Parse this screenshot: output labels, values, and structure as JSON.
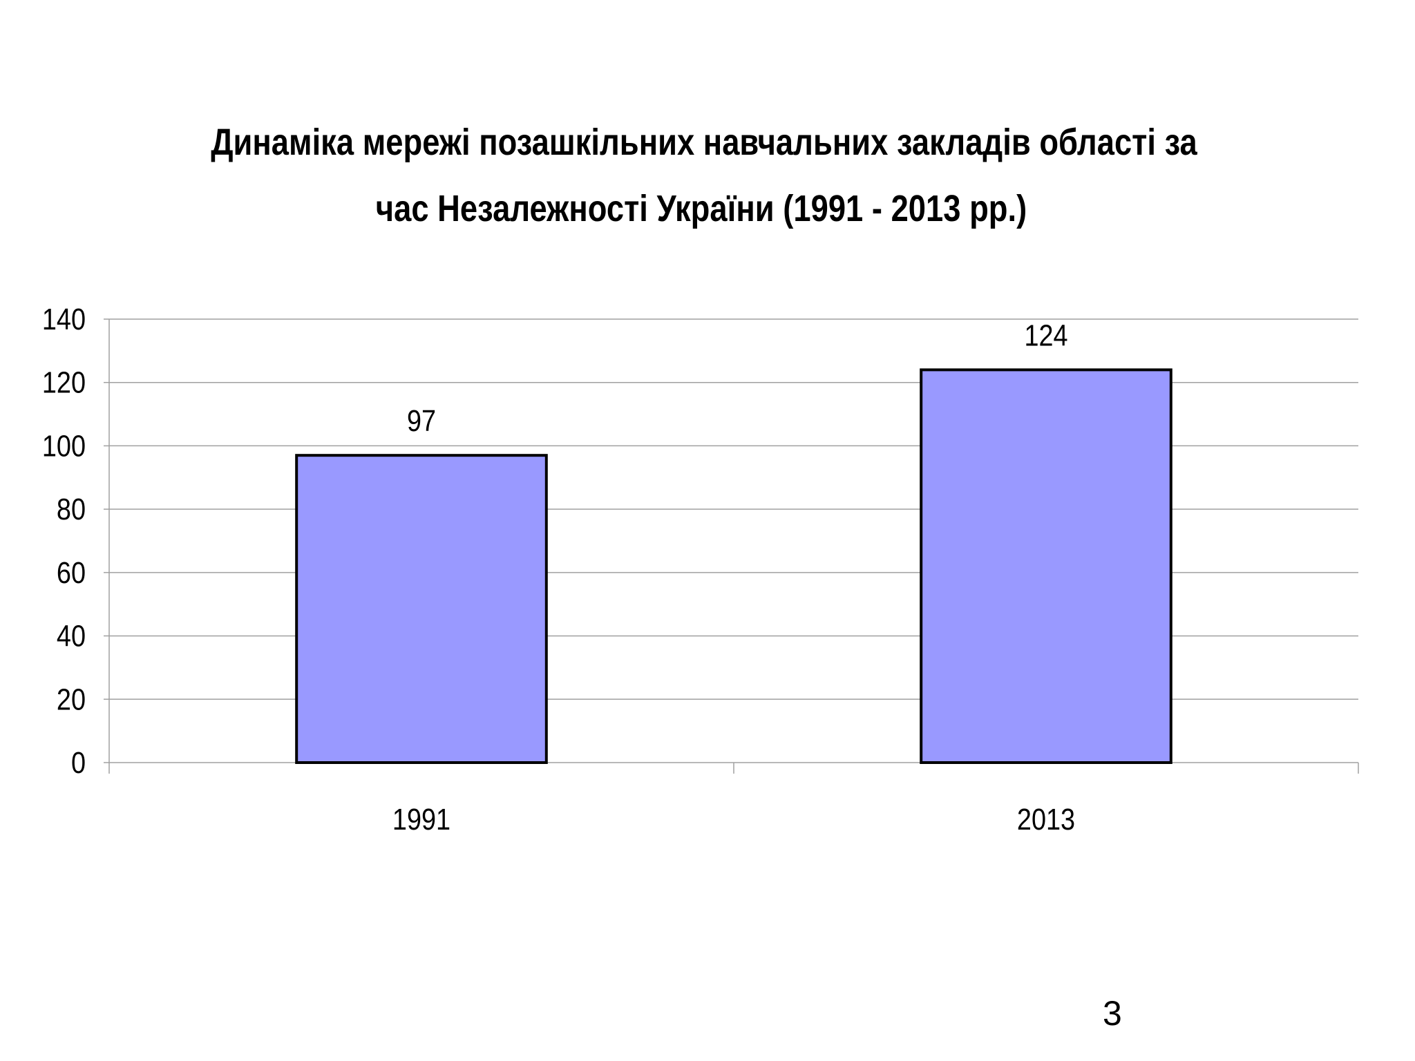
{
  "slide": {
    "title_line1": "Динаміка мережі позашкільних навчальних закладів області  за",
    "title_line2": "час Незалежності України (1991 - 2013 рр.)",
    "page_number": "3"
  },
  "chart_data": {
    "type": "bar",
    "title": "Динаміка мережі позашкільних навчальних закладів області  за час Незалежності України (1991 - 2013 рр.)",
    "categories": [
      "1991",
      "2013"
    ],
    "values": [
      97,
      124
    ],
    "data_labels": [
      "97",
      "124"
    ],
    "xlabel": "",
    "ylabel": "",
    "ylim": [
      0,
      140
    ],
    "yticks": [
      0,
      20,
      40,
      60,
      80,
      100,
      120,
      140
    ],
    "grid": true,
    "legend": "none",
    "bar_color": "#9999ff",
    "bar_edge_color": "#000000"
  }
}
